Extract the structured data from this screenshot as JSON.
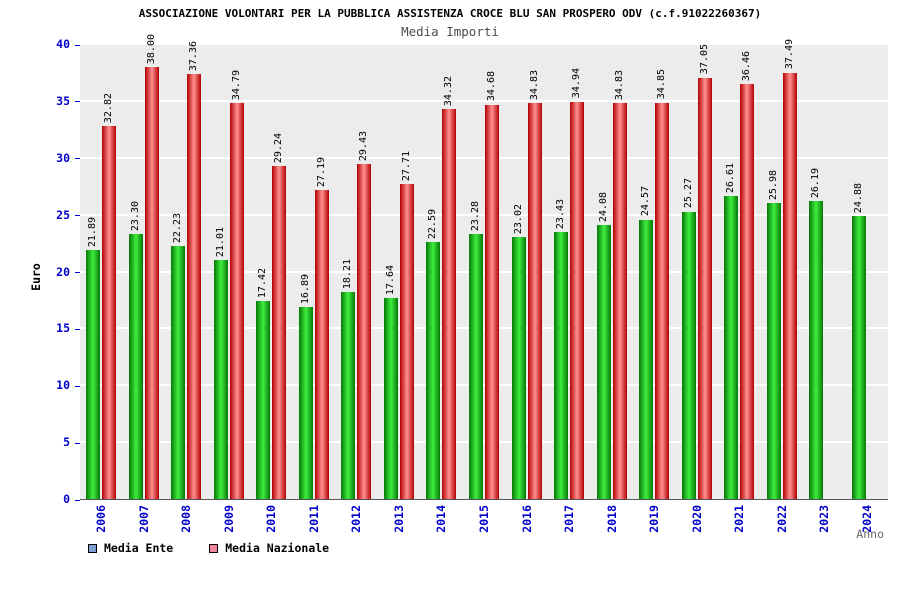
{
  "title": "ASSOCIAZIONE VOLONTARI PER LA PUBBLICA ASSISTENZA CROCE BLU SAN PROSPERO ODV (c.f.91022260367)",
  "subtitle": "Media Importi",
  "chart_data": {
    "type": "bar",
    "title": "Media Importi",
    "xlabel": "Anno",
    "ylabel": "Euro",
    "ylim": [
      0,
      40
    ],
    "ytick_step": 5,
    "grid": "horizontal-white-on-gray",
    "legend_position": "bottom-left",
    "categories": [
      "2006",
      "2007",
      "2008",
      "2009",
      "2010",
      "2011",
      "2012",
      "2013",
      "2014",
      "2015",
      "2016",
      "2017",
      "2018",
      "2019",
      "2020",
      "2021",
      "2022",
      "2023",
      "2024"
    ],
    "series": [
      {
        "name": "Media Ente",
        "bar_color_edge": "#067806",
        "bar_color_center": "#3fee3f",
        "legend_color": "#7f9fd4",
        "values": [
          21.89,
          23.3,
          22.23,
          21.01,
          17.42,
          16.89,
          18.21,
          17.64,
          22.59,
          23.28,
          23.02,
          23.43,
          24.08,
          24.57,
          25.27,
          26.61,
          25.98,
          26.19,
          24.88
        ]
      },
      {
        "name": "Media Nazionale",
        "bar_color_edge": "#b30000",
        "bar_color_center": "#ff9090",
        "legend_color": "#ef8699",
        "values": [
          32.82,
          38.0,
          37.36,
          34.79,
          29.24,
          27.19,
          29.43,
          27.71,
          34.32,
          34.68,
          34.83,
          34.94,
          34.83,
          34.85,
          37.05,
          36.46,
          37.49,
          null,
          null
        ]
      }
    ],
    "axis_tick_color": "#0000cc",
    "plot_background": "#ececec"
  }
}
